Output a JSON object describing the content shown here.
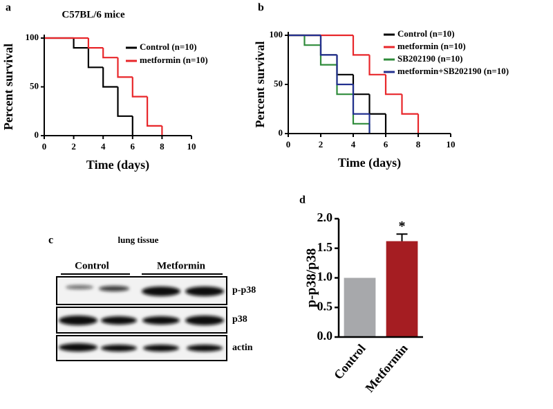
{
  "chart_data": [
    {
      "type": "survival",
      "panel_label": "a",
      "title": "C57BL/6 mice",
      "xlabel": "Time (days)",
      "ylabel": "Percent survival",
      "xlim": [
        0,
        10
      ],
      "xticks": [
        0,
        2,
        4,
        6,
        8,
        10
      ],
      "ylim": [
        0,
        100
      ],
      "yticks": [
        0,
        50,
        100
      ],
      "series": [
        {
          "name": "Control (n=10)",
          "color": "#000000",
          "x": [
            0,
            2,
            3,
            4,
            5,
            6
          ],
          "values": [
            100,
            90,
            70,
            50,
            20,
            0
          ]
        },
        {
          "name": "metformin (n=10)",
          "color": "#e8262a",
          "x": [
            0,
            3,
            4,
            5,
            6,
            7,
            8
          ],
          "values": [
            100,
            90,
            80,
            60,
            40,
            10,
            0
          ]
        }
      ]
    },
    {
      "type": "survival",
      "panel_label": "b",
      "xlabel": "Time (days)",
      "ylabel": "Percent survival",
      "xlim": [
        0,
        10
      ],
      "xticks": [
        0,
        2,
        4,
        6,
        8,
        10
      ],
      "ylim": [
        0,
        100
      ],
      "yticks": [
        0,
        50,
        100
      ],
      "series": [
        {
          "name": "Control (n=10)",
          "color": "#000000",
          "x": [
            0,
            2,
            3,
            4,
            5,
            6
          ],
          "values": [
            100,
            80,
            60,
            40,
            20,
            0
          ]
        },
        {
          "name": "metformin (n=10)",
          "color": "#e8262a",
          "x": [
            0,
            4,
            5,
            6,
            7,
            8
          ],
          "values": [
            100,
            80,
            60,
            40,
            20,
            0
          ]
        },
        {
          "name": "SB202190 (n=10)",
          "color": "#2e8b3a",
          "x": [
            0,
            1,
            2,
            3,
            4,
            5
          ],
          "values": [
            100,
            90,
            70,
            40,
            10,
            0
          ]
        },
        {
          "name": "metformin+SB202190 (n=10)",
          "color": "#23308f",
          "x": [
            0,
            2,
            3,
            4,
            5
          ],
          "values": [
            100,
            80,
            50,
            20,
            0
          ]
        }
      ]
    },
    {
      "type": "bar",
      "panel_label": "d",
      "ylabel": "p-p38/p38",
      "annotation": "*",
      "categories": [
        "Control",
        "Metformin"
      ],
      "values": [
        1.0,
        1.62
      ],
      "errors": [
        0,
        0.12
      ],
      "colors": [
        "#a7a8ab",
        "#a51d22"
      ],
      "ylim": [
        0,
        2
      ],
      "yticks": [
        {
          "value": 0,
          "label": "0.0"
        },
        {
          "value": 0.5,
          "label": "0.5"
        },
        {
          "value": 1,
          "label": "1.0"
        },
        {
          "value": 1.5,
          "label": "1.5"
        },
        {
          "value": 2,
          "label": "2.0"
        }
      ]
    }
  ],
  "blot": {
    "panel_label": "c",
    "title": "lung tissue",
    "groups": [
      "Control",
      "Metformin"
    ],
    "rows": [
      "p-p38",
      "p38",
      "actin"
    ]
  }
}
